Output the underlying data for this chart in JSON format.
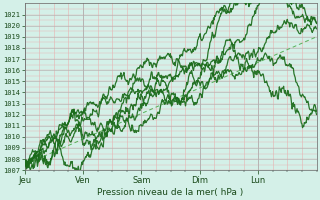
{
  "xlabel": "Pression niveau de la mer( hPa )",
  "bg_color": "#d4f0e8",
  "plot_bg_color": "#d4f0e8",
  "grid_color_major": "#b0b0b0",
  "grid_color_minor": "#e8b0b0",
  "line_color_dark": "#1a6b1a",
  "line_color_dashed": "#4aaa4a",
  "ylim": [
    1007,
    1022
  ],
  "yticks": [
    1007,
    1008,
    1009,
    1010,
    1011,
    1012,
    1013,
    1014,
    1015,
    1016,
    1017,
    1018,
    1019,
    1020,
    1021
  ],
  "day_labels": [
    "Jeu",
    "Ven",
    "Sam",
    "Dim",
    "Lun"
  ],
  "total_days": 5
}
